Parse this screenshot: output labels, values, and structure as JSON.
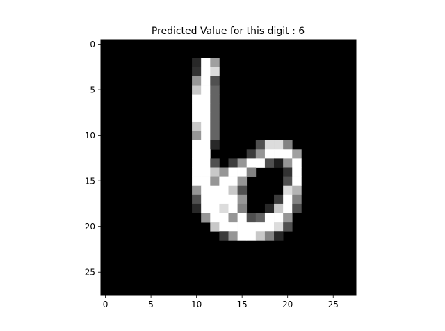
{
  "chart_data": {
    "type": "heatmap",
    "title": "Predicted Value for this digit : 6",
    "xlabel": "",
    "ylabel": "",
    "colormap": "gray",
    "value_range": [
      0,
      255
    ],
    "rows": 28,
    "cols": 28,
    "xlim": [
      -0.5,
      27.5
    ],
    "ylim": [
      27.5,
      -0.5
    ],
    "xticks": [
      0,
      5,
      10,
      15,
      20,
      25
    ],
    "yticks": [
      0,
      5,
      10,
      15,
      20,
      25
    ],
    "grid": false,
    "nonzero_pixels": [
      [
        2,
        10,
        40
      ],
      [
        2,
        11,
        255
      ],
      [
        2,
        12,
        160
      ],
      [
        3,
        10,
        50
      ],
      [
        3,
        11,
        255
      ],
      [
        3,
        12,
        220
      ],
      [
        4,
        10,
        150
      ],
      [
        4,
        11,
        255
      ],
      [
        4,
        12,
        80
      ],
      [
        5,
        10,
        200
      ],
      [
        5,
        11,
        255
      ],
      [
        5,
        12,
        100
      ],
      [
        6,
        10,
        255
      ],
      [
        6,
        11,
        255
      ],
      [
        6,
        12,
        100
      ],
      [
        7,
        10,
        255
      ],
      [
        7,
        11,
        255
      ],
      [
        7,
        12,
        100
      ],
      [
        8,
        10,
        255
      ],
      [
        8,
        11,
        255
      ],
      [
        8,
        12,
        100
      ],
      [
        9,
        10,
        200
      ],
      [
        9,
        11,
        255
      ],
      [
        9,
        12,
        100
      ],
      [
        10,
        10,
        150
      ],
      [
        10,
        11,
        255
      ],
      [
        10,
        12,
        100
      ],
      [
        11,
        10,
        255
      ],
      [
        11,
        11,
        255
      ],
      [
        11,
        12,
        40
      ],
      [
        11,
        17,
        80
      ],
      [
        11,
        18,
        220
      ],
      [
        11,
        19,
        220
      ],
      [
        11,
        20,
        130
      ],
      [
        12,
        10,
        255
      ],
      [
        12,
        11,
        255
      ],
      [
        12,
        16,
        60
      ],
      [
        12,
        17,
        150
      ],
      [
        12,
        18,
        255
      ],
      [
        12,
        19,
        255
      ],
      [
        12,
        20,
        255
      ],
      [
        12,
        21,
        160
      ],
      [
        13,
        10,
        255
      ],
      [
        13,
        11,
        255
      ],
      [
        13,
        12,
        80
      ],
      [
        13,
        14,
        60
      ],
      [
        13,
        15,
        150
      ],
      [
        13,
        16,
        255
      ],
      [
        13,
        17,
        255
      ],
      [
        13,
        18,
        80
      ],
      [
        13,
        19,
        30
      ],
      [
        13,
        20,
        150
      ],
      [
        13,
        21,
        255
      ],
      [
        14,
        10,
        255
      ],
      [
        14,
        11,
        255
      ],
      [
        14,
        12,
        200
      ],
      [
        14,
        13,
        150
      ],
      [
        14,
        14,
        255
      ],
      [
        14,
        15,
        255
      ],
      [
        14,
        16,
        130
      ],
      [
        14,
        20,
        50
      ],
      [
        14,
        21,
        255
      ],
      [
        15,
        10,
        255
      ],
      [
        15,
        11,
        255
      ],
      [
        15,
        12,
        150
      ],
      [
        15,
        13,
        255
      ],
      [
        15,
        14,
        255
      ],
      [
        15,
        15,
        150
      ],
      [
        15,
        20,
        80
      ],
      [
        15,
        21,
        255
      ],
      [
        16,
        10,
        150
      ],
      [
        16,
        11,
        255
      ],
      [
        16,
        12,
        255
      ],
      [
        16,
        13,
        255
      ],
      [
        16,
        14,
        200
      ],
      [
        16,
        15,
        80
      ],
      [
        16,
        20,
        220
      ],
      [
        16,
        21,
        180
      ],
      [
        17,
        10,
        80
      ],
      [
        17,
        11,
        255
      ],
      [
        17,
        12,
        255
      ],
      [
        17,
        13,
        255
      ],
      [
        17,
        14,
        255
      ],
      [
        17,
        15,
        150
      ],
      [
        17,
        19,
        60
      ],
      [
        17,
        20,
        255
      ],
      [
        17,
        21,
        130
      ],
      [
        18,
        10,
        40
      ],
      [
        18,
        11,
        255
      ],
      [
        18,
        12,
        255
      ],
      [
        18,
        13,
        220
      ],
      [
        18,
        14,
        255
      ],
      [
        18,
        15,
        130
      ],
      [
        18,
        18,
        40
      ],
      [
        18,
        19,
        200
      ],
      [
        18,
        20,
        255
      ],
      [
        18,
        21,
        80
      ],
      [
        19,
        11,
        150
      ],
      [
        19,
        12,
        255
      ],
      [
        19,
        13,
        255
      ],
      [
        19,
        14,
        150
      ],
      [
        19,
        15,
        255
      ],
      [
        19,
        16,
        80
      ],
      [
        19,
        17,
        100
      ],
      [
        19,
        18,
        255
      ],
      [
        19,
        19,
        255
      ],
      [
        19,
        20,
        150
      ],
      [
        20,
        12,
        200
      ],
      [
        20,
        13,
        255
      ],
      [
        20,
        14,
        255
      ],
      [
        20,
        15,
        255
      ],
      [
        20,
        16,
        255
      ],
      [
        20,
        17,
        255
      ],
      [
        20,
        18,
        255
      ],
      [
        20,
        19,
        220
      ],
      [
        20,
        20,
        80
      ],
      [
        21,
        13,
        60
      ],
      [
        21,
        14,
        150
      ],
      [
        21,
        15,
        255
      ],
      [
        21,
        16,
        255
      ],
      [
        21,
        17,
        200
      ],
      [
        21,
        18,
        130
      ],
      [
        21,
        19,
        40
      ]
    ]
  }
}
